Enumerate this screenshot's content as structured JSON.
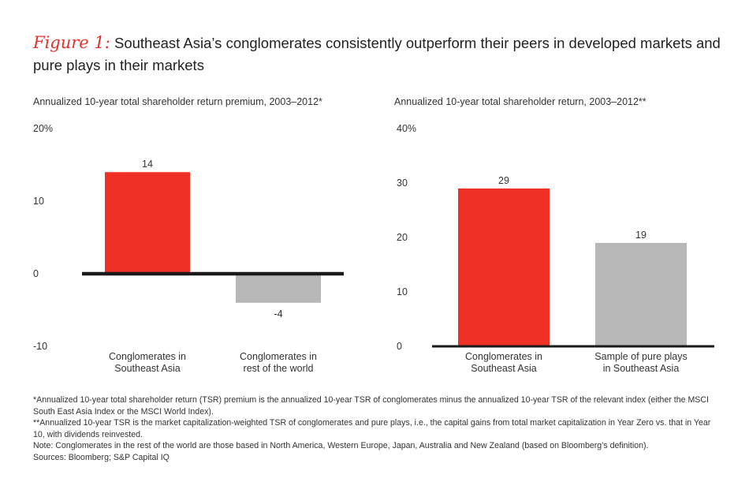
{
  "header": {
    "figure_label": "Figure 1:",
    "title": "Southeast Asia’s conglomerates consistently outperform their peers in developed markets and pure plays in their markets"
  },
  "colors": {
    "highlight": "#ee3124",
    "neutral": "#b7b7b7",
    "axis": "#1a1a1a"
  },
  "chart_data": [
    {
      "type": "bar",
      "title": "Annualized 10-year total shareholder return premium, 2003–2012*",
      "ylim": [
        -10,
        20
      ],
      "yticks": [
        "20%",
        "10",
        "0",
        "-10"
      ],
      "categories": [
        "Conglomerates in\nSoutheast Asia",
        "Conglomerates in\nrest of the world"
      ],
      "values": [
        14,
        -4
      ],
      "value_labels": [
        "14",
        "-4"
      ],
      "bar_colors": [
        "#ee3124",
        "#b7b7b7"
      ]
    },
    {
      "type": "bar",
      "title": "Annualized 10-year total shareholder return, 2003–2012**",
      "ylim": [
        0,
        40
      ],
      "yticks": [
        "40%",
        "30",
        "20",
        "10",
        "0"
      ],
      "categories": [
        "Conglomerates in\nSoutheast Asia",
        "Sample of pure plays\nin Southeast Asia"
      ],
      "values": [
        29,
        19
      ],
      "value_labels": [
        "29",
        "19"
      ],
      "bar_colors": [
        "#ee3124",
        "#b7b7b7"
      ]
    }
  ],
  "notes": [
    "*Annualized 10-year total shareholder return (TSR) premium is the annualized 10-year TSR of conglomerates minus the annualized 10-year TSR of the relevant index (either the MSCI South East Asia Index or the MSCI World Index).",
    "**Annualized 10-year TSR is the market capitalization-weighted TSR of conglomerates and pure plays, i.e., the capital gains from total market capitalization in Year Zero vs. that in Year 10, with dividends reinvested.",
    "Note: Conglomerates in the rest of the world are those based in North America, Western Europe, Japan, Australia and New Zealand (based on Bloomberg’s definition).",
    "Sources: Bloomberg; S&P Capital IQ"
  ]
}
